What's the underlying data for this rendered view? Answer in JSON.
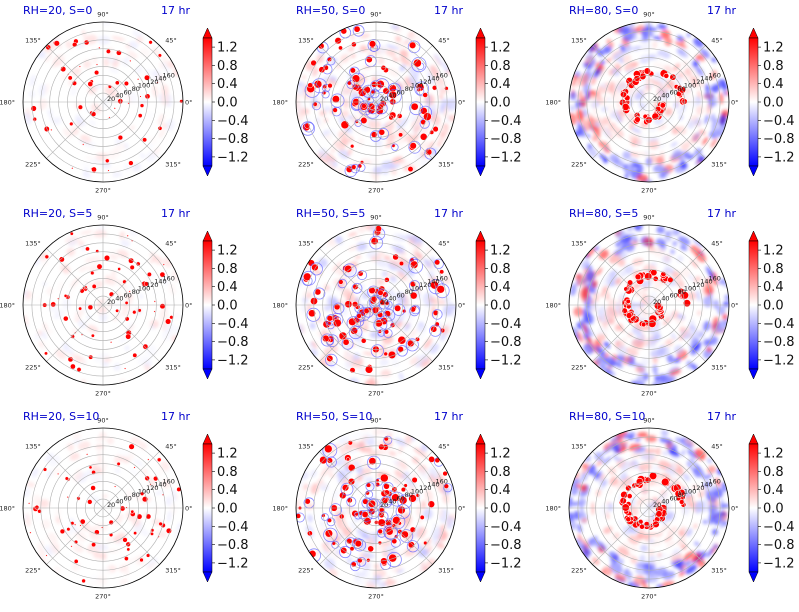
{
  "chart_data": {
    "type": "heatmap",
    "projection": "polar",
    "layout": {
      "rows": 3,
      "cols": 3
    },
    "angular_ticks": [
      "0°",
      "45°",
      "90°",
      "135°",
      "180°",
      "225°",
      "270°",
      "315°"
    ],
    "radial_ticks": [
      "20",
      "40",
      "60",
      "80",
      "100",
      "120",
      "140",
      "160"
    ],
    "rmax": 180,
    "colorbar": {
      "cmap": "bwr",
      "vmin": -1.4,
      "vmax": 1.4,
      "extend": "both",
      "ticks": [
        "1.2",
        "0.8",
        "0.4",
        "0.0",
        "−0.4",
        "−0.8",
        "−1.2"
      ]
    },
    "title_color": "#0000cc",
    "panels": [
      {
        "title": "RH=20, S=0",
        "time": "17 hr",
        "rh": 20,
        "s": 0
      },
      {
        "title": "RH=50, S=0",
        "time": "17 hr",
        "rh": 50,
        "s": 0
      },
      {
        "title": "RH=80, S=0",
        "time": "17 hr",
        "rh": 80,
        "s": 0
      },
      {
        "title": "RH=20, S=5",
        "time": "17 hr",
        "rh": 20,
        "s": 5
      },
      {
        "title": "RH=50, S=5",
        "time": "17 hr",
        "rh": 50,
        "s": 5
      },
      {
        "title": "RH=80, S=5",
        "time": "17 hr",
        "rh": 80,
        "s": 5
      },
      {
        "title": "RH=20, S=10",
        "time": "17 hr",
        "rh": 20,
        "s": 10
      },
      {
        "title": "RH=50, S=10",
        "time": "17 hr",
        "rh": 50,
        "s": 10
      },
      {
        "title": "RH=80, S=10",
        "time": "17 hr",
        "rh": 80,
        "s": 10
      }
    ]
  }
}
